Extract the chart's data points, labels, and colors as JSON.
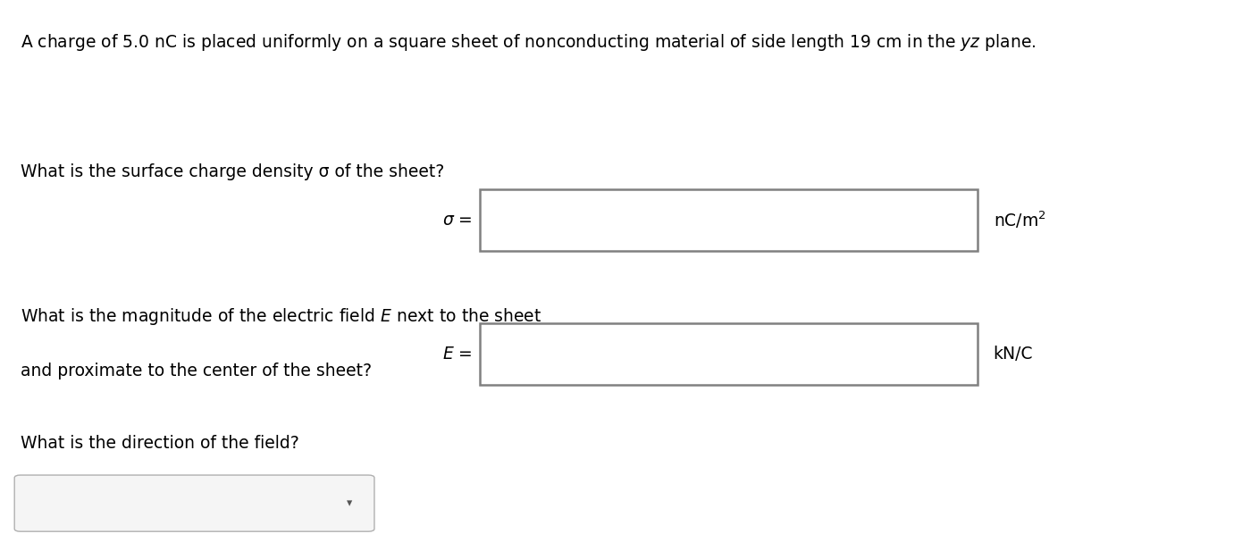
{
  "title_line1": "A charge of 5.0 nC is placed uniformly on a square sheet of nonconducting material of side length 19 cm in the ",
  "title_yz": "yz",
  "title_line1_end": " plane.",
  "q1_text": "What is the surface charge density σ of the sheet?",
  "q1_label": "σ =",
  "q1_unit": "nC/m²",
  "q2_line1": "What is the magnitude of the electric field ",
  "q2_E": "E",
  "q2_line1_end": " next to the sheet",
  "q2_line2": "and proximate to the center of the sheet?",
  "q2_label": "E =",
  "q2_unit": "kN/C",
  "q3_text": "What is the direction of the field?",
  "bg_color": "#ffffff",
  "text_color": "#000000",
  "box_edge_color": "#808080",
  "box_fill": "#ffffff",
  "dropdown_edge": "#b0b0b0",
  "dropdown_fill": "#f5f5f5",
  "dropdown_arrow_color": "#555555",
  "font_size": 13.5,
  "fig_width": 14.09,
  "fig_height": 6.07
}
